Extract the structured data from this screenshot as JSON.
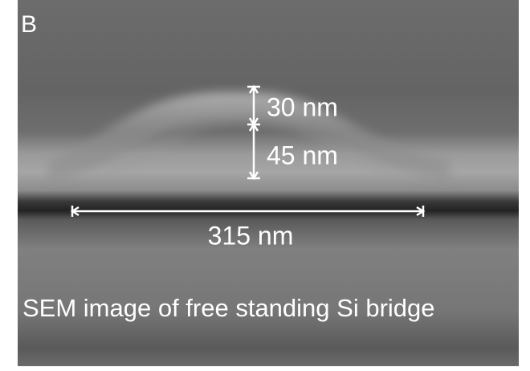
{
  "panel_label": "B",
  "measurements": [
    {
      "label": "30 nm"
    },
    {
      "label": "45 nm"
    },
    {
      "label": "315 nm"
    }
  ],
  "caption": "SEM image of free standing Si bridge"
}
